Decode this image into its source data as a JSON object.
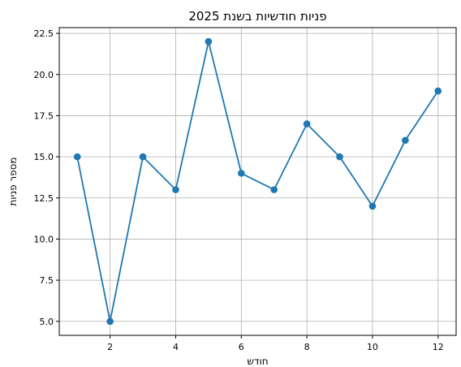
{
  "chart_data": {
    "type": "line",
    "title": "פניות חודשיות בשנת 2025",
    "xlabel": "חודש",
    "ylabel": "מספר פניות",
    "x": [
      1,
      2,
      3,
      4,
      5,
      6,
      7,
      8,
      9,
      10,
      11,
      12
    ],
    "series": [
      {
        "values": [
          15,
          5,
          15,
          13,
          22,
          14,
          13,
          17,
          15,
          12,
          16,
          19
        ],
        "color": "#1f77b4",
        "marker": "circle"
      }
    ],
    "xticks": [
      2,
      4,
      6,
      8,
      10,
      12
    ],
    "yticks": [
      5.0,
      7.5,
      10.0,
      12.5,
      15.0,
      17.5,
      20.0,
      22.5
    ],
    "xlim": [
      0.45,
      12.55
    ],
    "ylim": [
      4.15,
      22.85
    ],
    "grid": true,
    "legend": "none"
  }
}
